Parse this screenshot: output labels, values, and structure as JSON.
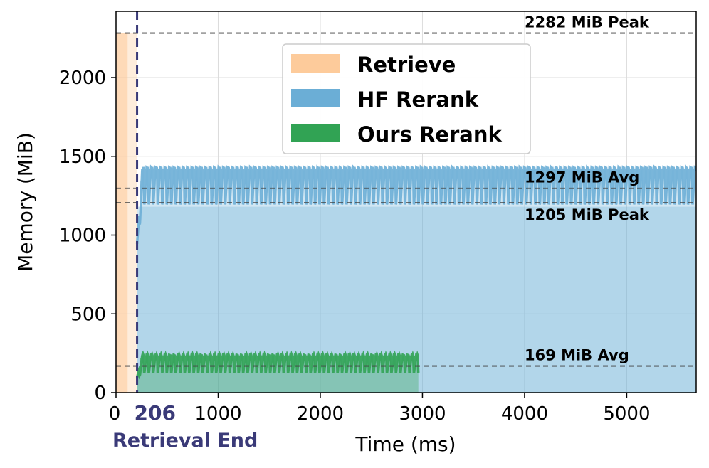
{
  "chart_data": {
    "type": "area",
    "xlabel": "Time (ms)",
    "ylabel": "Memory (MiB)",
    "xlim": [
      0,
      5680
    ],
    "ylim": [
      0,
      2420
    ],
    "xticks": [
      0,
      1000,
      2000,
      3000,
      4000,
      5000
    ],
    "yticks": [
      0,
      500,
      1000,
      1500,
      2000
    ],
    "grid": true,
    "legend_position": "top-center",
    "legend": [
      {
        "label": "Retrieve",
        "color": "#fdcb9b"
      },
      {
        "label": "HF Rerank",
        "color": "#6baed6"
      },
      {
        "label": "Ours Rerank",
        "color": "#31a354"
      }
    ],
    "retrieve_region": {
      "x_start": 0,
      "x_end": 206,
      "peak": 2282,
      "color": "#fdcb9b"
    },
    "retrieval_end": {
      "x": 206,
      "label": "206",
      "caption": "Retrieval End",
      "color": "#3a3a78"
    },
    "series": [
      {
        "name": "HF Rerank",
        "x_start": 206,
        "x_end": 5680,
        "low": 1180,
        "high": 1420,
        "period_ms": 44,
        "color": "#6baed6"
      },
      {
        "name": "Ours Rerank",
        "x_start": 206,
        "x_end": 2960,
        "low": 120,
        "high": 235,
        "period_ms": 44,
        "color": "#31a354"
      }
    ],
    "reference_lines": [
      {
        "value": 2282,
        "label": "2282 MiB Peak",
        "label_position": "above"
      },
      {
        "value": 1297,
        "label": "1297 MiB Avg",
        "label_position": "above"
      },
      {
        "value": 1205,
        "label": "1205 MiB Peak",
        "label_position": "below"
      },
      {
        "value": 169,
        "label": "169 MiB Avg",
        "label_position": "above"
      }
    ],
    "reference_label_x": 4000
  }
}
